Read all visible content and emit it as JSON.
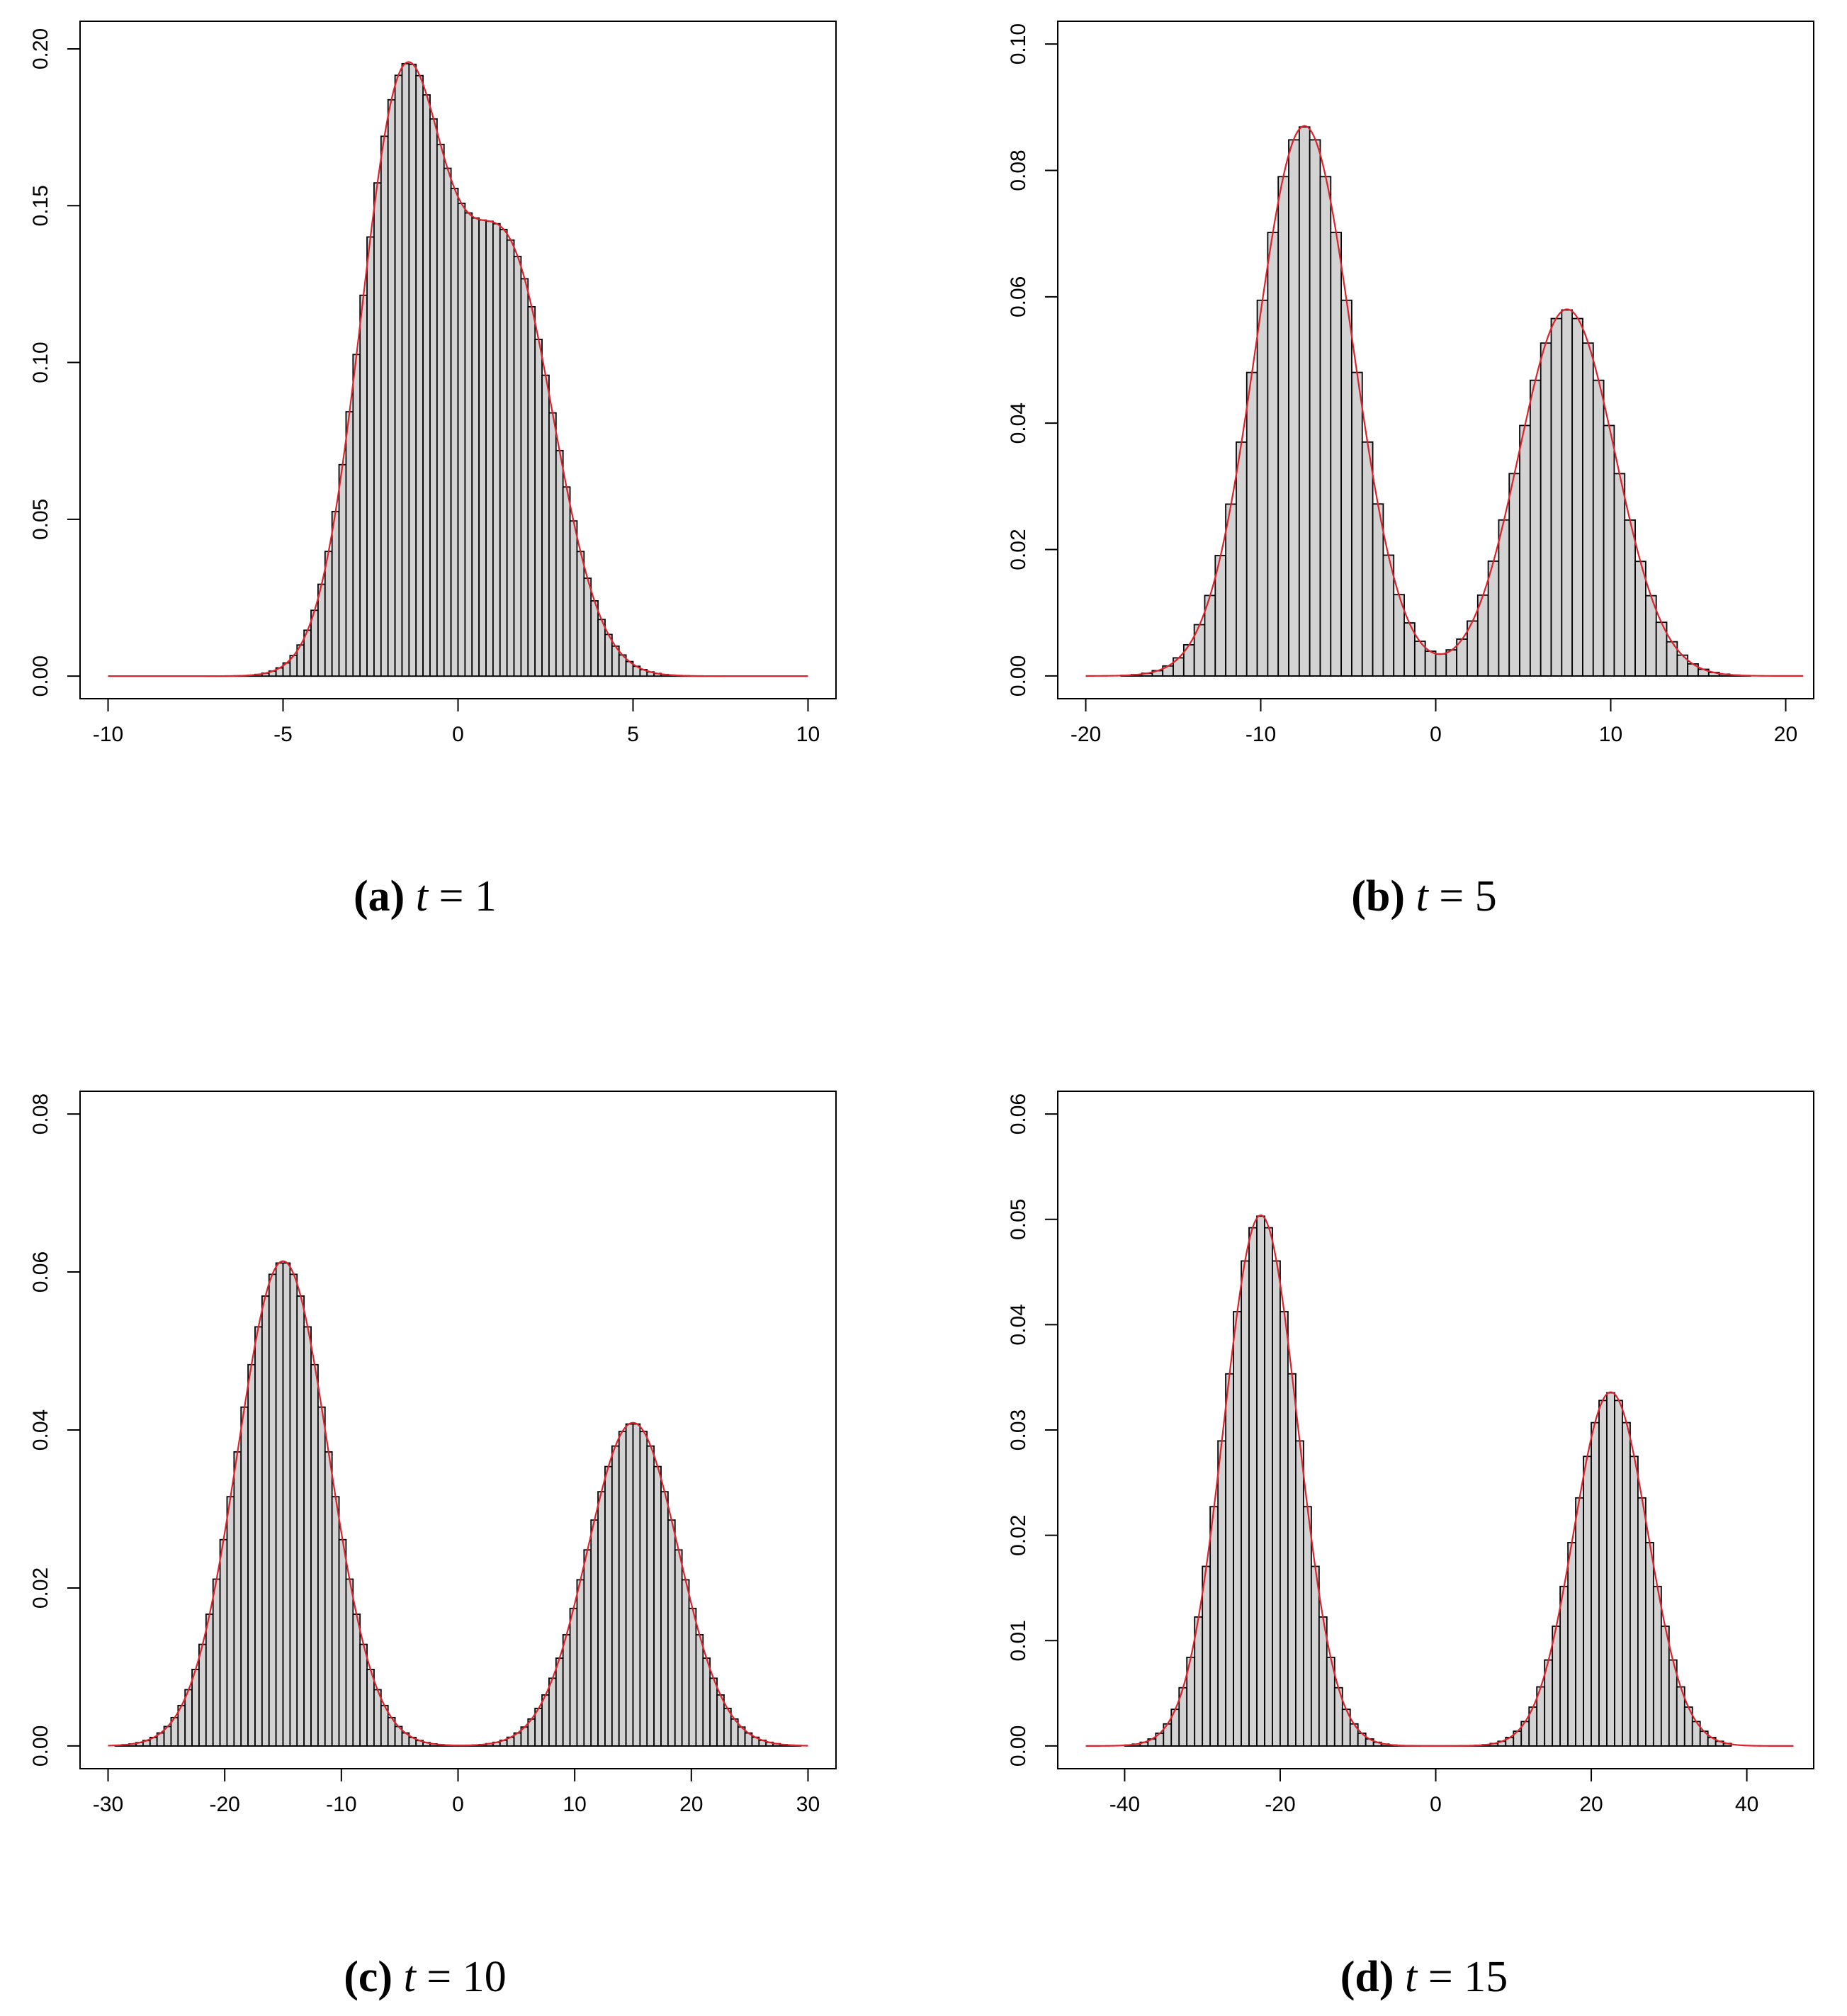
{
  "figure": {
    "panels": [
      {
        "label": "a",
        "variable": "t",
        "operator": "=",
        "value": "1"
      },
      {
        "label": "b",
        "variable": "t",
        "operator": "=",
        "value": "5"
      },
      {
        "label": "c",
        "variable": "t",
        "operator": "=",
        "value": "10"
      },
      {
        "label": "d",
        "variable": "t",
        "operator": "=",
        "value": "15"
      }
    ]
  },
  "colors": {
    "bar_fill": "#d3d3d3",
    "bar_stroke": "#000000",
    "density_line": "#e0202a",
    "axis": "#000000"
  },
  "chart_data": [
    {
      "type": "bar",
      "subtype": "histogram-with-density",
      "caption": "(a) t = 1",
      "xlim": [
        -10.8,
        10.8
      ],
      "ylim": [
        -0.0072,
        0.2088
      ],
      "xticks": [
        -10,
        -5,
        0,
        5,
        10
      ],
      "xtick_labels": [
        "-10",
        "-5",
        "0",
        "5",
        "10"
      ],
      "yticks": [
        0,
        0.05,
        0.1,
        0.15,
        0.2
      ],
      "ytick_labels": [
        "0.00",
        "0.05",
        "0.10",
        "0.15",
        "0.20"
      ],
      "bin_width": 0.2,
      "bar_range": [
        -7.2,
        7.6
      ],
      "curve_range": [
        -10,
        10
      ],
      "density": {
        "components": [
          {
            "weight": 0.55,
            "mean": -1.6,
            "sd": 1.2
          },
          {
            "weight": 0.45,
            "mean": 1.4,
            "sd": 1.35
          }
        ]
      },
      "modes": [
        {
          "x": -1.25,
          "y": 0.203
        },
        {
          "x": 0.9,
          "y": 0.145
        }
      ],
      "grid": false,
      "legend": "none"
    },
    {
      "type": "bar",
      "subtype": "histogram-with-density",
      "caption": "(b) t = 5",
      "xlim": [
        -21.6,
        21.6
      ],
      "ylim": [
        -0.0036,
        0.1036
      ],
      "xticks": [
        -20,
        -10,
        0,
        10,
        20
      ],
      "xtick_labels": [
        "-20",
        "-10",
        "0",
        "10",
        "20"
      ],
      "yticks": [
        0,
        0.02,
        0.04,
        0.06,
        0.08,
        0.1
      ],
      "ytick_labels": [
        "0.00",
        "0.02",
        "0.04",
        "0.06",
        "0.08",
        "0.10"
      ],
      "bin_width": 0.6,
      "bar_range": [
        -18,
        18
      ],
      "curve_range": [
        -20,
        21
      ],
      "density": {
        "components": [
          {
            "weight": 0.6,
            "mean": -7.5,
            "sd": 2.75
          },
          {
            "weight": 0.4,
            "mean": 7.5,
            "sd": 2.75
          }
        ]
      },
      "modes": [
        {
          "x": -7.5,
          "y": 0.087
        },
        {
          "x": 7.5,
          "y": 0.058
        }
      ],
      "grid": false,
      "legend": "none"
    },
    {
      "type": "bar",
      "subtype": "histogram-with-density",
      "caption": "(c) t = 10",
      "xlim": [
        -32.4,
        32.4
      ],
      "ylim": [
        -0.00288,
        0.08288
      ],
      "xticks": [
        -30,
        -20,
        -10,
        0,
        10,
        20,
        30
      ],
      "xtick_labels": [
        "-30",
        "-20",
        "-10",
        "0",
        "10",
        "20",
        "30"
      ],
      "yticks": [
        0,
        0.02,
        0.04,
        0.06,
        0.08
      ],
      "ytick_labels": [
        "0.00",
        "0.02",
        "0.04",
        "0.06",
        "0.08"
      ],
      "bin_width": 0.6,
      "bar_range": [
        -29.4,
        29.4
      ],
      "curve_range": [
        -30,
        30
      ],
      "density": {
        "components": [
          {
            "weight": 0.6,
            "mean": -15,
            "sd": 3.9
          },
          {
            "weight": 0.4,
            "mean": 15,
            "sd": 3.9
          }
        ]
      },
      "modes": [
        {
          "x": -15,
          "y": 0.0615
        },
        {
          "x": 15,
          "y": 0.041
        }
      ],
      "grid": false,
      "legend": "none"
    },
    {
      "type": "bar",
      "subtype": "histogram-with-density",
      "caption": "(d) t = 15",
      "xlim": [
        -48.6,
        48.6
      ],
      "ylim": [
        -0.00216,
        0.06216
      ],
      "xticks": [
        -40,
        -20,
        0,
        20,
        40
      ],
      "xtick_labels": [
        "-40",
        "-20",
        "0",
        "20",
        "40"
      ],
      "yticks": [
        0,
        0.01,
        0.02,
        0.03,
        0.04,
        0.05,
        0.06
      ],
      "ytick_labels": [
        "0.00",
        "0.01",
        "0.02",
        "0.03",
        "0.04",
        "0.05",
        "0.06"
      ],
      "bin_width": 1.0,
      "bar_range": [
        -40,
        38
      ],
      "curve_range": [
        -45,
        46
      ],
      "density": {
        "components": [
          {
            "weight": 0.6,
            "mean": -22.5,
            "sd": 4.75
          },
          {
            "weight": 0.4,
            "mean": 22.5,
            "sd": 4.75
          }
        ]
      },
      "modes": [
        {
          "x": -22.5,
          "y": 0.0502
        },
        {
          "x": 22.5,
          "y": 0.0335
        }
      ],
      "grid": false,
      "legend": "none"
    }
  ]
}
